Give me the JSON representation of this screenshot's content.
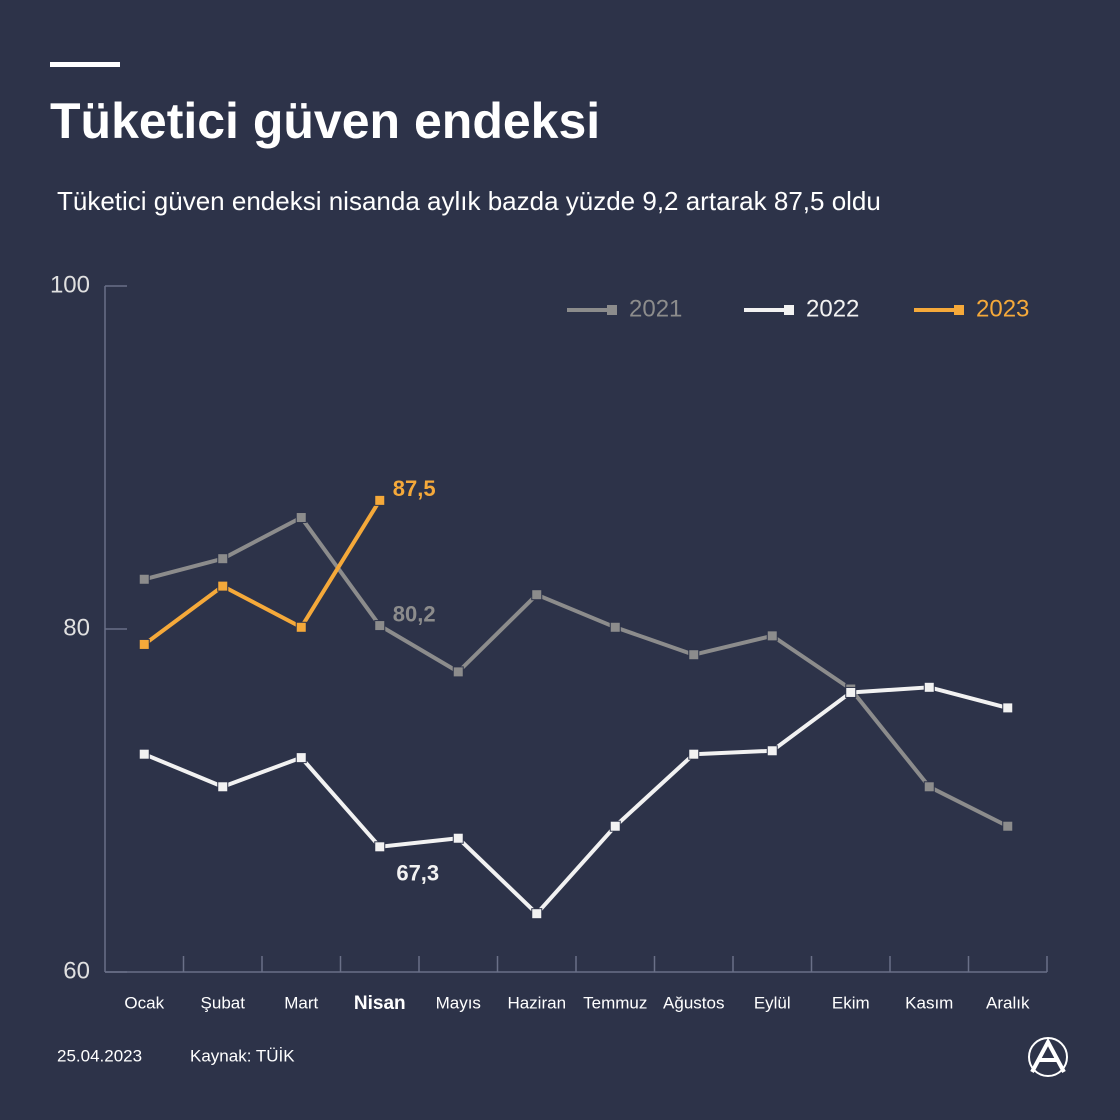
{
  "chart_data": {
    "type": "line",
    "title": "Tüketici güven endeksi",
    "subtitle": "Tüketici güven endeksi nisanda aylık bazda yüzde 9,2 artarak 87,5 oldu",
    "categories": [
      "Ocak",
      "Şubat",
      "Mart",
      "Nisan",
      "Mayıs",
      "Haziran",
      "Temmuz",
      "Ağustos",
      "Eylül",
      "Ekim",
      "Kasım",
      "Aralık"
    ],
    "highlight_index": 3,
    "series": [
      {
        "name": "2021",
        "color": "#8c8c8c",
        "values": [
          82.9,
          84.1,
          86.5,
          80.2,
          77.5,
          82.0,
          80.1,
          78.5,
          79.6,
          76.5,
          70.8,
          68.5
        ],
        "value_labels": [
          null,
          null,
          null,
          "80,2",
          null,
          null,
          null,
          null,
          null,
          null,
          null,
          null
        ]
      },
      {
        "name": "2022",
        "color": "#f2f2f2",
        "values": [
          72.7,
          70.8,
          72.5,
          67.3,
          67.8,
          63.4,
          68.5,
          72.7,
          72.9,
          76.3,
          76.6,
          75.4
        ],
        "value_labels": [
          null,
          null,
          null,
          "67,3",
          null,
          null,
          null,
          null,
          null,
          null,
          null,
          null
        ]
      },
      {
        "name": "2023",
        "color": "#f5a93a",
        "values": [
          79.1,
          82.5,
          80.1,
          87.5,
          null,
          null,
          null,
          null,
          null,
          null,
          null,
          null
        ],
        "value_labels": [
          null,
          null,
          null,
          "87,5",
          null,
          null,
          null,
          null,
          null,
          null,
          null,
          null
        ]
      }
    ],
    "ylim": [
      60,
      100
    ],
    "yticks": [
      60,
      80,
      100
    ],
    "legend": "top-right",
    "date": "25.04.2023",
    "source": "Kaynak: TÜİK"
  }
}
